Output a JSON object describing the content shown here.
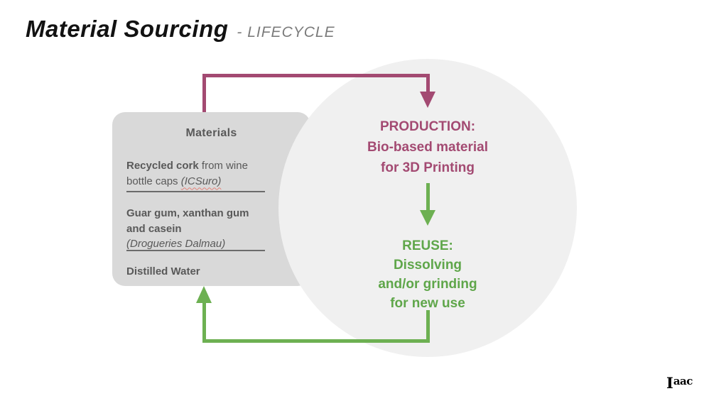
{
  "title": {
    "main": "Material Sourcing",
    "suffix": "- LIFECYCLE"
  },
  "materials_box": {
    "header": "Materials",
    "items": [
      {
        "bold": "Recycled cork",
        "rest_line1": " from wine",
        "line2": "bottle caps ",
        "source": "(ICSuro)"
      },
      {
        "bold_line1": "Guar gum, xanthan gum",
        "bold_line2": "and casein",
        "source": "(Drogueries Dalmau)"
      },
      {
        "bold": "Distilled Water"
      }
    ]
  },
  "production": {
    "lines": [
      "PRODUCTION:",
      "Bio-based material",
      "for 3D Printing"
    ]
  },
  "reuse": {
    "lines": [
      "REUSE:",
      "Dissolving",
      "and/or grinding",
      "for new use"
    ]
  },
  "logo": {
    "prefix": "I",
    "rest": "aac"
  },
  "colors": {
    "purple": "#a34a72",
    "green_arrow": "#6db052",
    "green_text": "#5fa64a",
    "box_gray": "#d9d9d9",
    "circle_gray": "#f0f0f0",
    "text_gray": "#595959",
    "title_black": "#121212",
    "subtitle_gray": "#7b7b7b",
    "squiggle_red": "#e2837a"
  }
}
